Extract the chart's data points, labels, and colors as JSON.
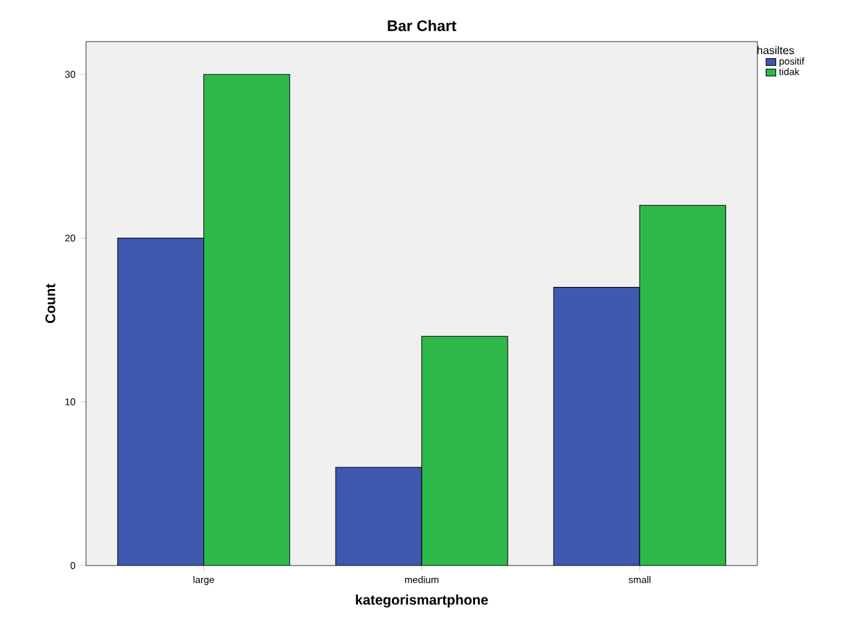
{
  "chart_data": {
    "type": "bar",
    "title": "Bar Chart",
    "xlabel": "kategorismartphone",
    "ylabel": "Count",
    "legend_title": "hasiltes",
    "categories": [
      "large",
      "medium",
      "small"
    ],
    "series": [
      {
        "name": "positif",
        "color": "#3f58b0",
        "values": [
          20,
          6,
          17
        ]
      },
      {
        "name": "tidak",
        "color": "#2fb84a",
        "values": [
          30,
          14,
          22
        ]
      }
    ],
    "ylim": [
      0,
      32
    ],
    "yticks": [
      0,
      10,
      20,
      30
    ],
    "legend": "top right"
  }
}
